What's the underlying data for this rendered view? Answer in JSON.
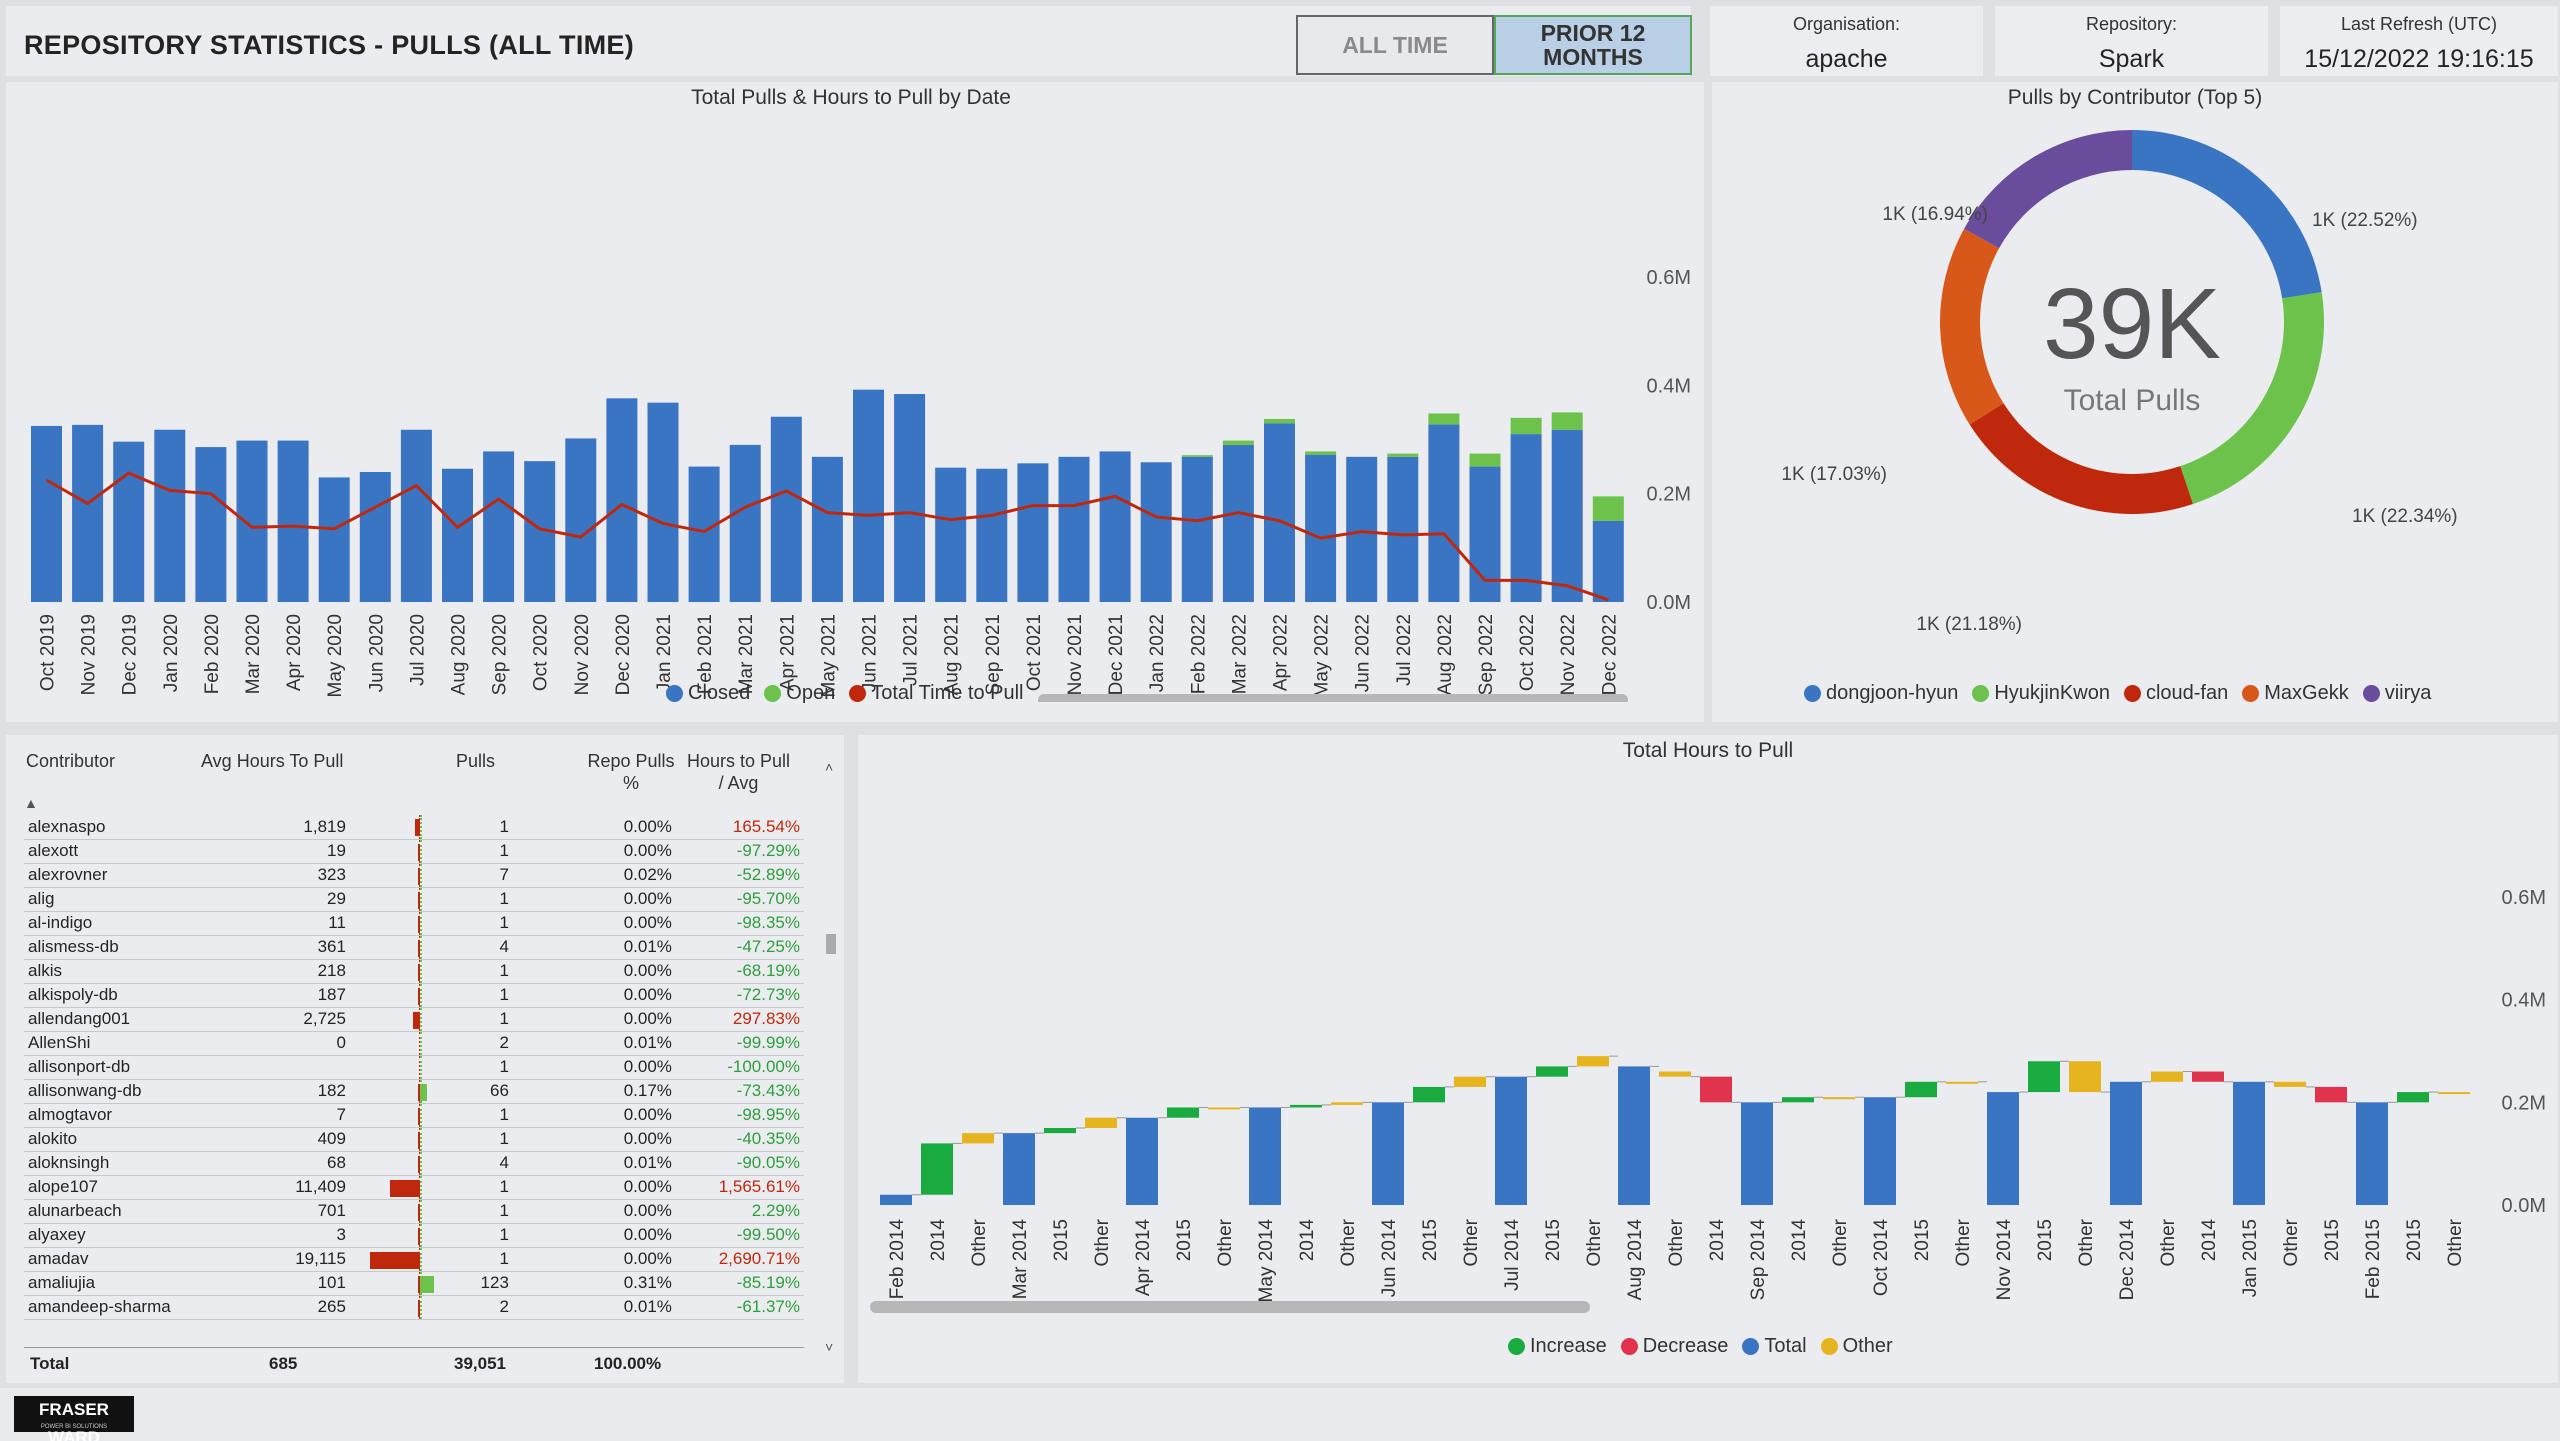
{
  "header": {
    "title": "REPOSITORY STATISTICS - PULLS (ALL TIME)",
    "toggle_all": "ALL TIME",
    "toggle_prior": "PRIOR 12 MONTHS"
  },
  "info": {
    "org_label": "Organisation:",
    "org_value": "apache",
    "repo_label": "Repository:",
    "repo_value": "Spark",
    "refresh_label": "Last Refresh (UTC)",
    "refresh_value": "15/12/2022 19:16:15"
  },
  "colors": {
    "closed": "#3a75c4",
    "open": "#6cc24a",
    "time": "#c0280d",
    "increase": "#1aab40",
    "decrease": "#e0334e",
    "total": "#3a75c4",
    "other": "#e6b41e"
  },
  "chart_data": [
    {
      "type": "bar",
      "title": "Total Pulls & Hours to Pull by Date",
      "y_ticks": [
        "0.6M",
        "0.4M",
        "0.2M",
        "0.0M"
      ],
      "ylim": [
        0,
        0.6
      ],
      "categories": [
        "Oct 2019",
        "Nov 2019",
        "Dec 2019",
        "Jan 2020",
        "Feb 2020",
        "Mar 2020",
        "Apr 2020",
        "May 2020",
        "Jun 2020",
        "Jul 2020",
        "Aug 2020",
        "Sep 2020",
        "Oct 2020",
        "Nov 2020",
        "Dec 2020",
        "Jan 2021",
        "Feb 2021",
        "Mar 2021",
        "Apr 2021",
        "May 2021",
        "Jun 2021",
        "Jul 2021",
        "Aug 2021",
        "Sep 2021",
        "Oct 2021",
        "Nov 2021",
        "Dec 2021",
        "Jan 2022",
        "Feb 2022",
        "Mar 2022",
        "Apr 2022",
        "May 2022",
        "Jun 2022",
        "Jul 2022",
        "Aug 2022",
        "Sep 2022",
        "Oct 2022",
        "Nov 2022",
        "Dec 2022"
      ],
      "series": [
        {
          "name": "Closed",
          "values": [
            0.325,
            0.327,
            0.296,
            0.318,
            0.286,
            0.298,
            0.298,
            0.23,
            0.24,
            0.318,
            0.246,
            0.278,
            0.26,
            0.302,
            0.376,
            0.368,
            0.25,
            0.29,
            0.342,
            0.268,
            0.392,
            0.384,
            0.248,
            0.246,
            0.256,
            0.268,
            0.278,
            0.258,
            0.268,
            0.29,
            0.33,
            0.272,
            0.268,
            0.268,
            0.328,
            0.25,
            0.31,
            0.318,
            0.15
          ]
        },
        {
          "name": "Open",
          "values": [
            0,
            0,
            0,
            0,
            0,
            0,
            0,
            0,
            0,
            0,
            0,
            0,
            0,
            0,
            0,
            0,
            0,
            0,
            0,
            0,
            0,
            0,
            0,
            0,
            0,
            0,
            0,
            0,
            0.003,
            0.008,
            0.008,
            0.006,
            0,
            0.006,
            0.02,
            0.024,
            0.03,
            0.032,
            0.045
          ]
        },
        {
          "name": "Total Time to Pull",
          "values": [
            0.225,
            0.182,
            0.238,
            0.206,
            0.2,
            0.138,
            0.14,
            0.135,
            0.175,
            0.215,
            0.138,
            0.19,
            0.135,
            0.12,
            0.18,
            0.145,
            0.13,
            0.175,
            0.205,
            0.165,
            0.16,
            0.165,
            0.152,
            0.16,
            0.178,
            0.178,
            0.195,
            0.157,
            0.15,
            0.165,
            0.15,
            0.118,
            0.13,
            0.124,
            0.126,
            0.04,
            0.04,
            0.03,
            0.004
          ]
        }
      ]
    },
    {
      "type": "pie",
      "title": "Pulls by Contributor (Top 5)",
      "center_value": "39K",
      "center_label": "Total Pulls",
      "labels": [
        "dongjoon-hyun",
        "HyukjinKwon",
        "cloud-fan",
        "MaxGekk",
        "viirya"
      ],
      "values": [
        22.52,
        22.34,
        21.18,
        17.03,
        16.94
      ],
      "data_labels": [
        "1K (22.52%)",
        "1K (22.34%)",
        "1K (21.18%)",
        "1K (17.03%)",
        "1K (16.94%)"
      ],
      "colors": [
        "#3a75c4",
        "#6cc24a",
        "#c0280d",
        "#d8581a",
        "#6a4c9c"
      ]
    },
    {
      "type": "bar",
      "subtype": "waterfall",
      "title": "Total Hours to Pull",
      "y_ticks": [
        "0.6M",
        "0.4M",
        "0.2M",
        "0.0M"
      ],
      "ylim": [
        0,
        0.6
      ],
      "legend": [
        "Increase",
        "Decrease",
        "Total",
        "Other"
      ],
      "categories": [
        "Feb 2014",
        "2014",
        "Other",
        "Mar 2014",
        "2015",
        "Other",
        "Apr 2014",
        "2015",
        "Other",
        "May 2014",
        "2014",
        "Other",
        "Jun 2014",
        "2015",
        "Other",
        "Jul 2014",
        "2015",
        "Other",
        "Aug 2014",
        "Other",
        "2014",
        "Sep 2014",
        "2014",
        "Other",
        "Oct 2014",
        "2015",
        "Other",
        "Nov 2014",
        "2015",
        "Other",
        "Dec 2014",
        "Other",
        "2014",
        "Jan 2015",
        "Other",
        "2015",
        "Feb 2015",
        "2015",
        "Other"
      ],
      "kinds": [
        "total",
        "increase",
        "other",
        "total",
        "increase",
        "other",
        "total",
        "increase",
        "other",
        "total",
        "increase",
        "other",
        "total",
        "increase",
        "other",
        "total",
        "increase",
        "other",
        "total",
        "other",
        "decrease",
        "total",
        "increase",
        "other",
        "total",
        "increase",
        "other",
        "total",
        "increase",
        "other",
        "total",
        "other",
        "decrease",
        "total",
        "other",
        "decrease",
        "total",
        "increase",
        "other"
      ],
      "starts": [
        0,
        0.02,
        0.12,
        0,
        0.14,
        0.15,
        0,
        0.17,
        0.19,
        0,
        0.19,
        0.195,
        0,
        0.2,
        0.23,
        0,
        0.25,
        0.27,
        0,
        0.26,
        0.25,
        0,
        0.2,
        0.21,
        0,
        0.21,
        0.24,
        0,
        0.22,
        0.28,
        0,
        0.24,
        0.26,
        0,
        0.24,
        0.23,
        0,
        0.2,
        0.22
      ],
      "ends": [
        0.02,
        0.12,
        0.14,
        0.14,
        0.15,
        0.17,
        0.17,
        0.19,
        0.19,
        0.19,
        0.195,
        0.2,
        0.2,
        0.23,
        0.25,
        0.25,
        0.27,
        0.29,
        0.27,
        0.25,
        0.2,
        0.2,
        0.21,
        0.21,
        0.21,
        0.24,
        0.24,
        0.22,
        0.28,
        0.22,
        0.24,
        0.26,
        0.24,
        0.24,
        0.23,
        0.2,
        0.2,
        0.22,
        0.22
      ]
    }
  ],
  "table": {
    "headers": {
      "contributor": "Contributor",
      "avg": "Avg Hours To Pull",
      "pulls": "Pulls",
      "repo_pct": "Repo Pulls %",
      "vs_avg": "Hours to Pull / Avg"
    },
    "rows": [
      {
        "c": "alexnaspo",
        "avg": "1,819",
        "pulls": "1",
        "pct": "0.00%",
        "vs": "165.54%",
        "pos": true
      },
      {
        "c": "alexott",
        "avg": "19",
        "pulls": "1",
        "pct": "0.00%",
        "vs": "-97.29%",
        "pos": false
      },
      {
        "c": "alexrovner",
        "avg": "323",
        "pulls": "7",
        "pct": "0.02%",
        "vs": "-52.89%",
        "pos": false
      },
      {
        "c": "alig",
        "avg": "29",
        "pulls": "1",
        "pct": "0.00%",
        "vs": "-95.70%",
        "pos": false
      },
      {
        "c": "al-indigo",
        "avg": "11",
        "pulls": "1",
        "pct": "0.00%",
        "vs": "-98.35%",
        "pos": false
      },
      {
        "c": "alismess-db",
        "avg": "361",
        "pulls": "4",
        "pct": "0.01%",
        "vs": "-47.25%",
        "pos": false
      },
      {
        "c": "alkis",
        "avg": "218",
        "pulls": "1",
        "pct": "0.00%",
        "vs": "-68.19%",
        "pos": false
      },
      {
        "c": "alkispoly-db",
        "avg": "187",
        "pulls": "1",
        "pct": "0.00%",
        "vs": "-72.73%",
        "pos": false
      },
      {
        "c": "allendang001",
        "avg": "2,725",
        "pulls": "1",
        "pct": "0.00%",
        "vs": "297.83%",
        "pos": true
      },
      {
        "c": "AllenShi",
        "avg": "0",
        "pulls": "2",
        "pct": "0.01%",
        "vs": "-99.99%",
        "pos": false
      },
      {
        "c": "allisonport-db",
        "avg": "",
        "pulls": "1",
        "pct": "0.00%",
        "vs": "-100.00%",
        "pos": false
      },
      {
        "c": "allisonwang-db",
        "avg": "182",
        "pulls": "66",
        "pct": "0.17%",
        "vs": "-73.43%",
        "pos": false
      },
      {
        "c": "almogtavor",
        "avg": "7",
        "pulls": "1",
        "pct": "0.00%",
        "vs": "-98.95%",
        "pos": false
      },
      {
        "c": "alokito",
        "avg": "409",
        "pulls": "1",
        "pct": "0.00%",
        "vs": "-40.35%",
        "pos": false
      },
      {
        "c": "aloknsingh",
        "avg": "68",
        "pulls": "4",
        "pct": "0.01%",
        "vs": "-90.05%",
        "pos": false
      },
      {
        "c": "alope107",
        "avg": "11,409",
        "pulls": "1",
        "pct": "0.00%",
        "vs": "1,565.61%",
        "pos": true
      },
      {
        "c": "alunarbeach",
        "avg": "701",
        "pulls": "1",
        "pct": "0.00%",
        "vs": "2.29%",
        "pos": false
      },
      {
        "c": "alyaxey",
        "avg": "3",
        "pulls": "1",
        "pct": "0.00%",
        "vs": "-99.50%",
        "pos": false
      },
      {
        "c": "amadav",
        "avg": "19,115",
        "pulls": "1",
        "pct": "0.00%",
        "vs": "2,690.71%",
        "pos": true
      },
      {
        "c": "amaliujia",
        "avg": "101",
        "pulls": "123",
        "pct": "0.31%",
        "vs": "-85.19%",
        "pos": false
      },
      {
        "c": "amandeep-sharma",
        "avg": "265",
        "pulls": "2",
        "pct": "0.01%",
        "vs": "-61.37%",
        "pos": false
      }
    ],
    "avg_bar_fill": [
      0.09,
      0.001,
      0.016,
      0.0015,
      0.0006,
      0.018,
      0.011,
      0.009,
      0.14,
      0,
      0,
      0.009,
      0.0003,
      0.02,
      0.0034,
      0.6,
      0.035,
      0.0002,
      1.0,
      0.005,
      0.013
    ],
    "pulls_bar_fill": [
      0,
      0,
      0,
      0,
      0,
      0,
      0,
      0,
      0,
      0,
      0,
      0.54,
      0,
      0,
      0,
      0,
      0,
      0,
      0,
      1.0,
      0
    ],
    "total": {
      "label": "Total",
      "avg": "685",
      "pulls": "39,051",
      "pct": "100.00%"
    }
  },
  "footer": {
    "logo": "FRASER WARD",
    "logo_sub": "POWER BI SOLUTIONS"
  }
}
